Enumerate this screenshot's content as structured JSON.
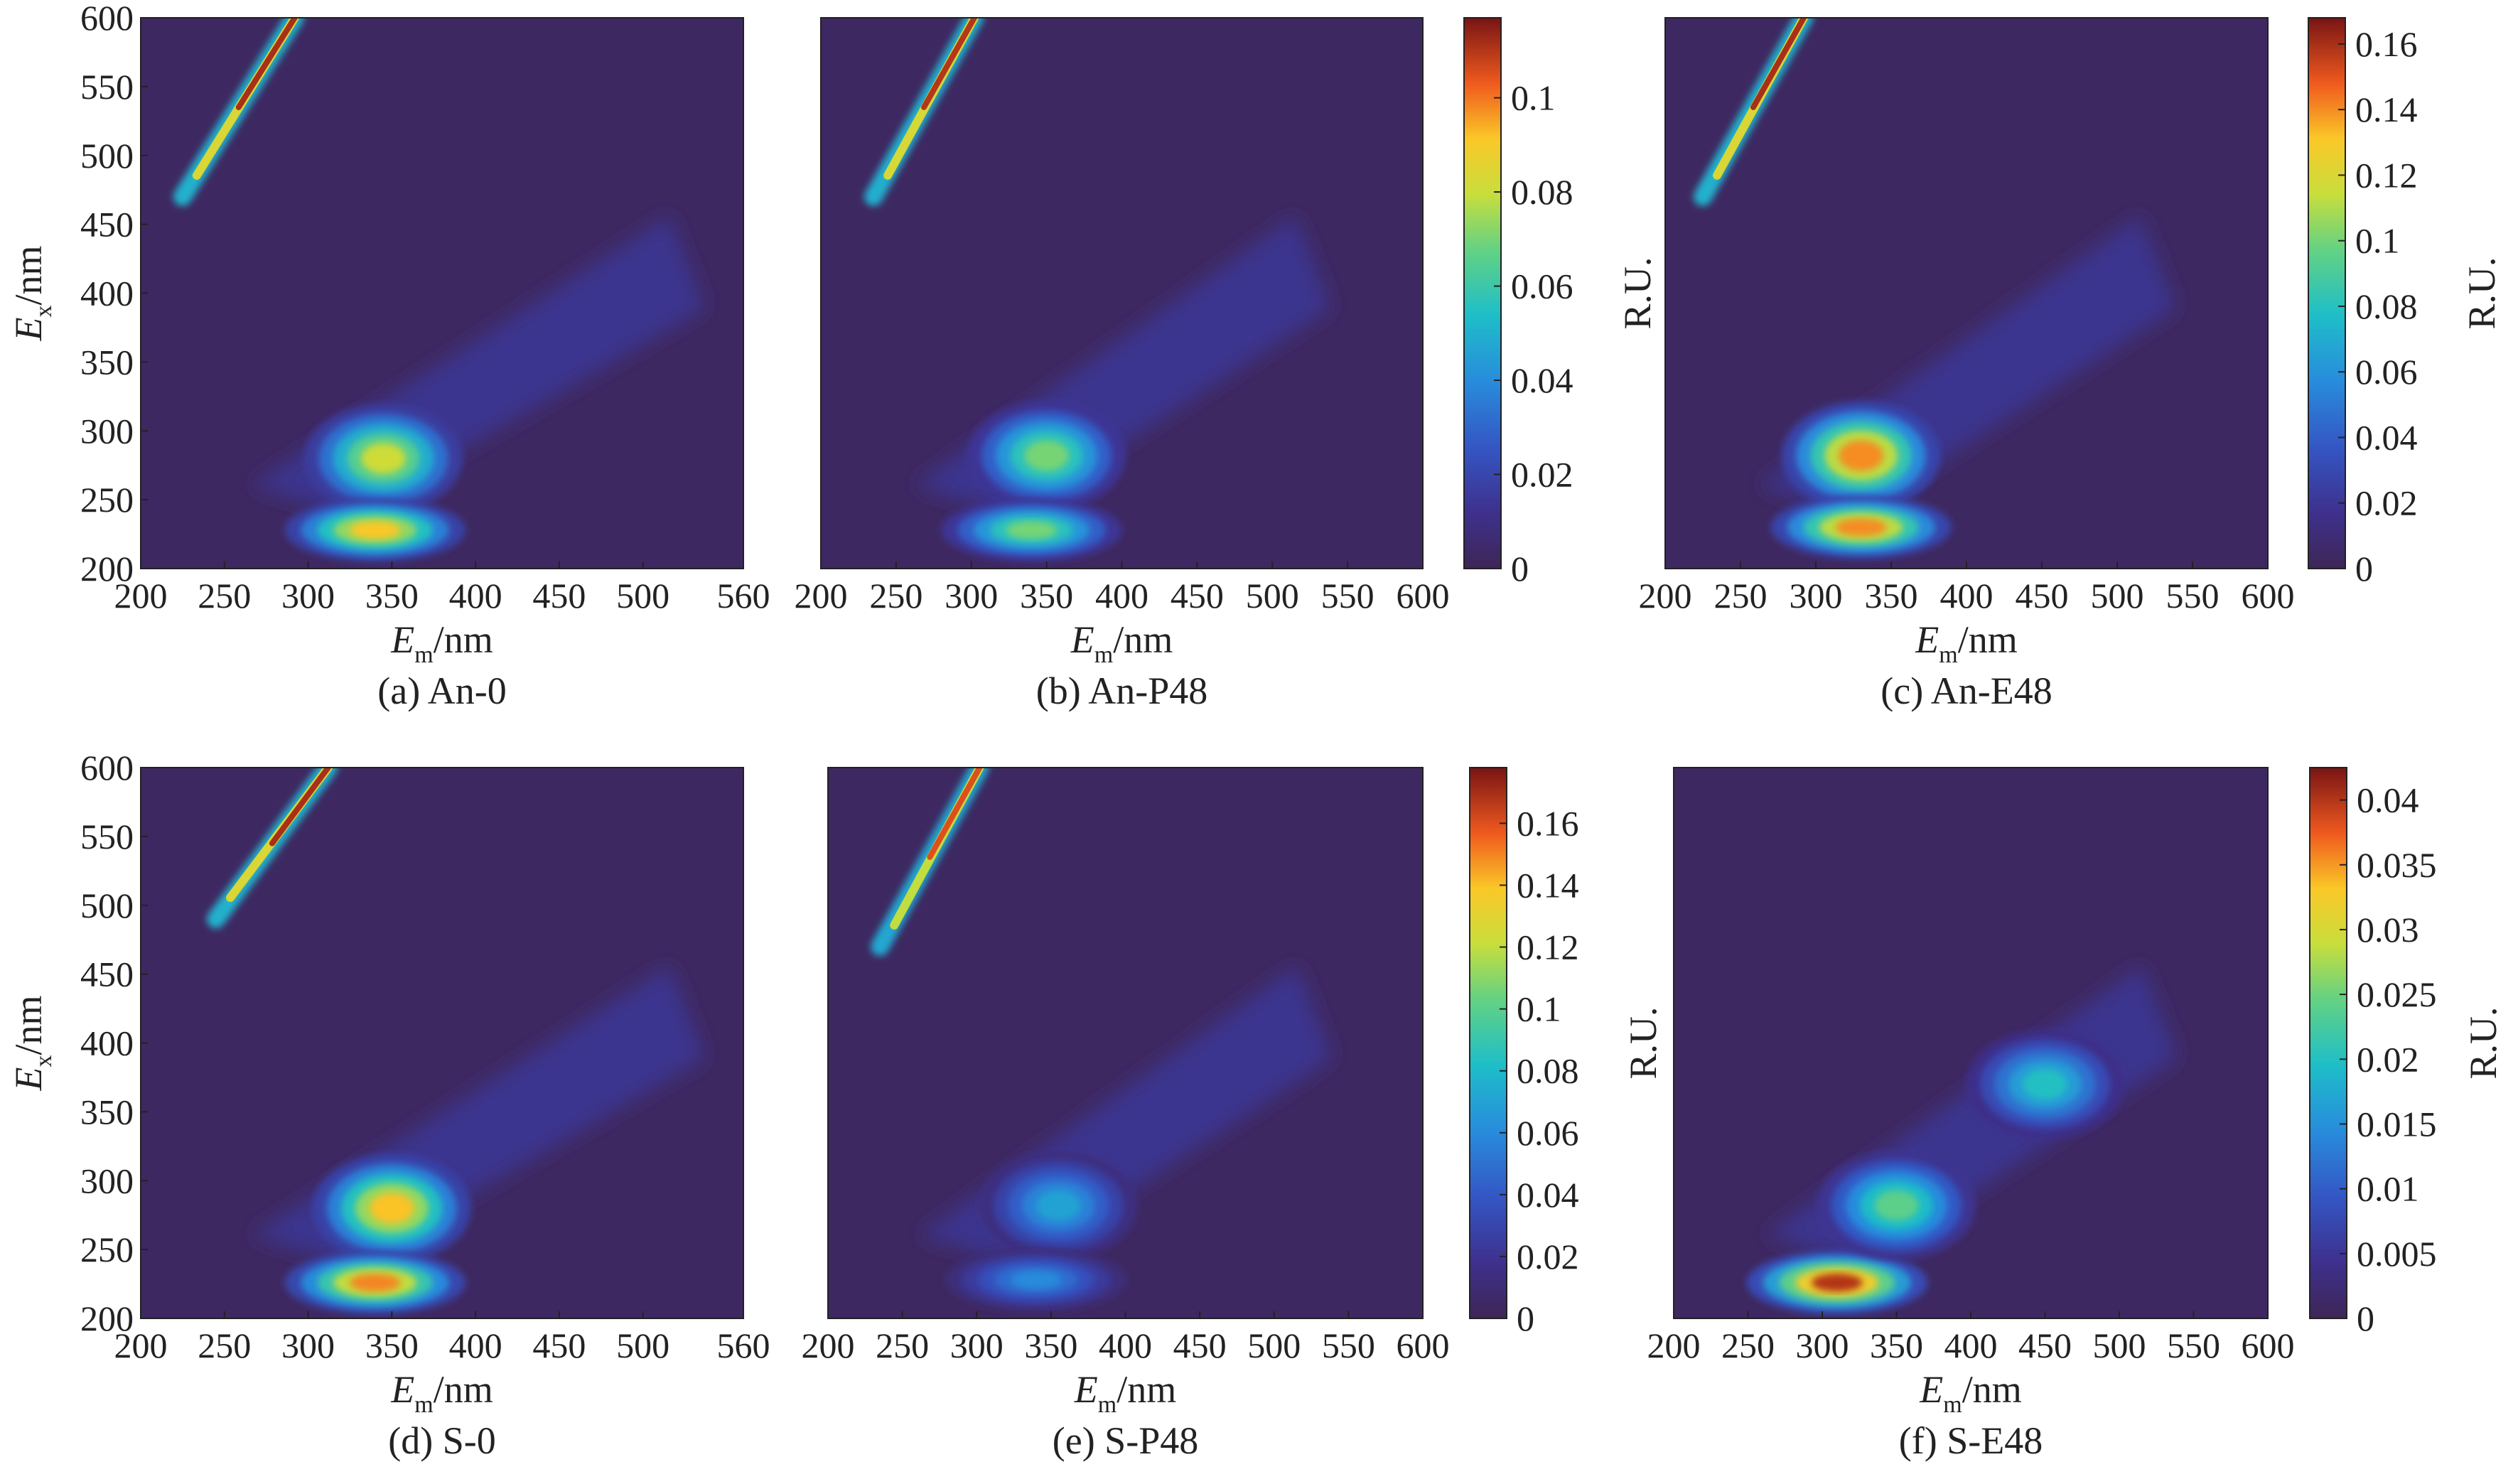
{
  "chart_data": [
    {
      "type": "heatmap",
      "caption": "(a) An-0",
      "xlabel": {
        "main": "E",
        "sub": "m",
        "unit": "/nm"
      },
      "ylabel": {
        "main": "E",
        "sub": "x",
        "unit": "/nm"
      },
      "xlim": [
        200,
        560
      ],
      "ylim": [
        200,
        600
      ],
      "xticks": [
        200,
        250,
        300,
        350,
        400,
        450,
        500,
        560
      ],
      "yticks": [
        200,
        250,
        300,
        350,
        400,
        450,
        500,
        550,
        600
      ],
      "peaks": [
        {
          "em": 345,
          "ex": 280,
          "value": 0.08
        },
        {
          "em": 340,
          "ex": 228,
          "value": 0.09
        },
        {
          "em": 280,
          "ex": 560,
          "value": 0.11
        }
      ]
    },
    {
      "type": "heatmap",
      "caption": "(b) An-P48",
      "xlabel": {
        "main": "E",
        "sub": "m",
        "unit": "/nm"
      },
      "xlim": [
        200,
        600
      ],
      "ylim": [
        200,
        600
      ],
      "xticks": [
        200,
        250,
        300,
        350,
        400,
        450,
        500,
        550,
        600
      ],
      "colorbar": {
        "label": "R.U.",
        "min": 0,
        "max": 0.117,
        "ticks": [
          0,
          0.02,
          0.04,
          0.06,
          0.08,
          0.1
        ]
      },
      "peaks": [
        {
          "em": 350,
          "ex": 282,
          "value": 0.07
        },
        {
          "em": 340,
          "ex": 228,
          "value": 0.07
        },
        {
          "em": 290,
          "ex": 560,
          "value": 0.11
        }
      ]
    },
    {
      "type": "heatmap",
      "caption": "(c) An-E48",
      "xlabel": {
        "main": "E",
        "sub": "m",
        "unit": "/nm"
      },
      "xlim": [
        200,
        600
      ],
      "ylim": [
        200,
        600
      ],
      "xticks": [
        200,
        250,
        300,
        350,
        400,
        450,
        500,
        550,
        600
      ],
      "colorbar": {
        "label": "R.U.",
        "min": 0,
        "max": 0.168,
        "ticks": [
          0,
          0.02,
          0.04,
          0.06,
          0.08,
          0.1,
          0.12,
          0.14,
          0.16
        ]
      },
      "peaks": [
        {
          "em": 330,
          "ex": 282,
          "value": 0.14
        },
        {
          "em": 330,
          "ex": 230,
          "value": 0.14
        },
        {
          "em": 280,
          "ex": 560,
          "value": 0.16
        }
      ]
    },
    {
      "type": "heatmap",
      "caption": "(d) S-0",
      "xlabel": {
        "main": "E",
        "sub": "m",
        "unit": "/nm"
      },
      "ylabel": {
        "main": "E",
        "sub": "x",
        "unit": "/nm"
      },
      "xlim": [
        200,
        560
      ],
      "ylim": [
        200,
        600
      ],
      "xticks": [
        200,
        250,
        300,
        350,
        400,
        450,
        500,
        560
      ],
      "yticks": [
        200,
        250,
        300,
        350,
        400,
        450,
        500,
        550,
        600
      ],
      "peaks": [
        {
          "em": 350,
          "ex": 280,
          "value": 0.14
        },
        {
          "em": 340,
          "ex": 226,
          "value": 0.15
        },
        {
          "em": 300,
          "ex": 580,
          "value": 0.17
        }
      ]
    },
    {
      "type": "heatmap",
      "caption": "(e) S-P48",
      "xlabel": {
        "main": "E",
        "sub": "m",
        "unit": "/nm"
      },
      "xlim": [
        200,
        600
      ],
      "ylim": [
        200,
        600
      ],
      "xticks": [
        200,
        250,
        300,
        350,
        400,
        450,
        500,
        550,
        600
      ],
      "colorbar": {
        "label": "R.U.",
        "min": 0,
        "max": 0.178,
        "ticks": [
          0,
          0.02,
          0.04,
          0.06,
          0.08,
          0.1,
          0.12,
          0.14,
          0.16
        ]
      },
      "peaks": [
        {
          "em": 355,
          "ex": 282,
          "value": 0.07
        },
        {
          "em": 340,
          "ex": 228,
          "value": 0.06
        },
        {
          "em": 290,
          "ex": 560,
          "value": 0.16
        }
      ]
    },
    {
      "type": "heatmap",
      "caption": "(f) S-E48",
      "xlabel": {
        "main": "E",
        "sub": "m",
        "unit": "/nm"
      },
      "xlim": [
        200,
        600
      ],
      "ylim": [
        200,
        600
      ],
      "xticks": [
        200,
        250,
        300,
        350,
        400,
        450,
        500,
        550,
        600
      ],
      "colorbar": {
        "label": "R.U.",
        "min": 0,
        "max": 0.0425,
        "ticks": [
          0,
          0.005,
          0.01,
          0.015,
          0.02,
          0.025,
          0.03,
          0.035,
          0.04
        ]
      },
      "peaks": [
        {
          "em": 310,
          "ex": 226,
          "value": 0.04
        },
        {
          "em": 350,
          "ex": 282,
          "value": 0.024
        },
        {
          "em": 450,
          "ex": 370,
          "value": 0.02
        }
      ]
    }
  ]
}
